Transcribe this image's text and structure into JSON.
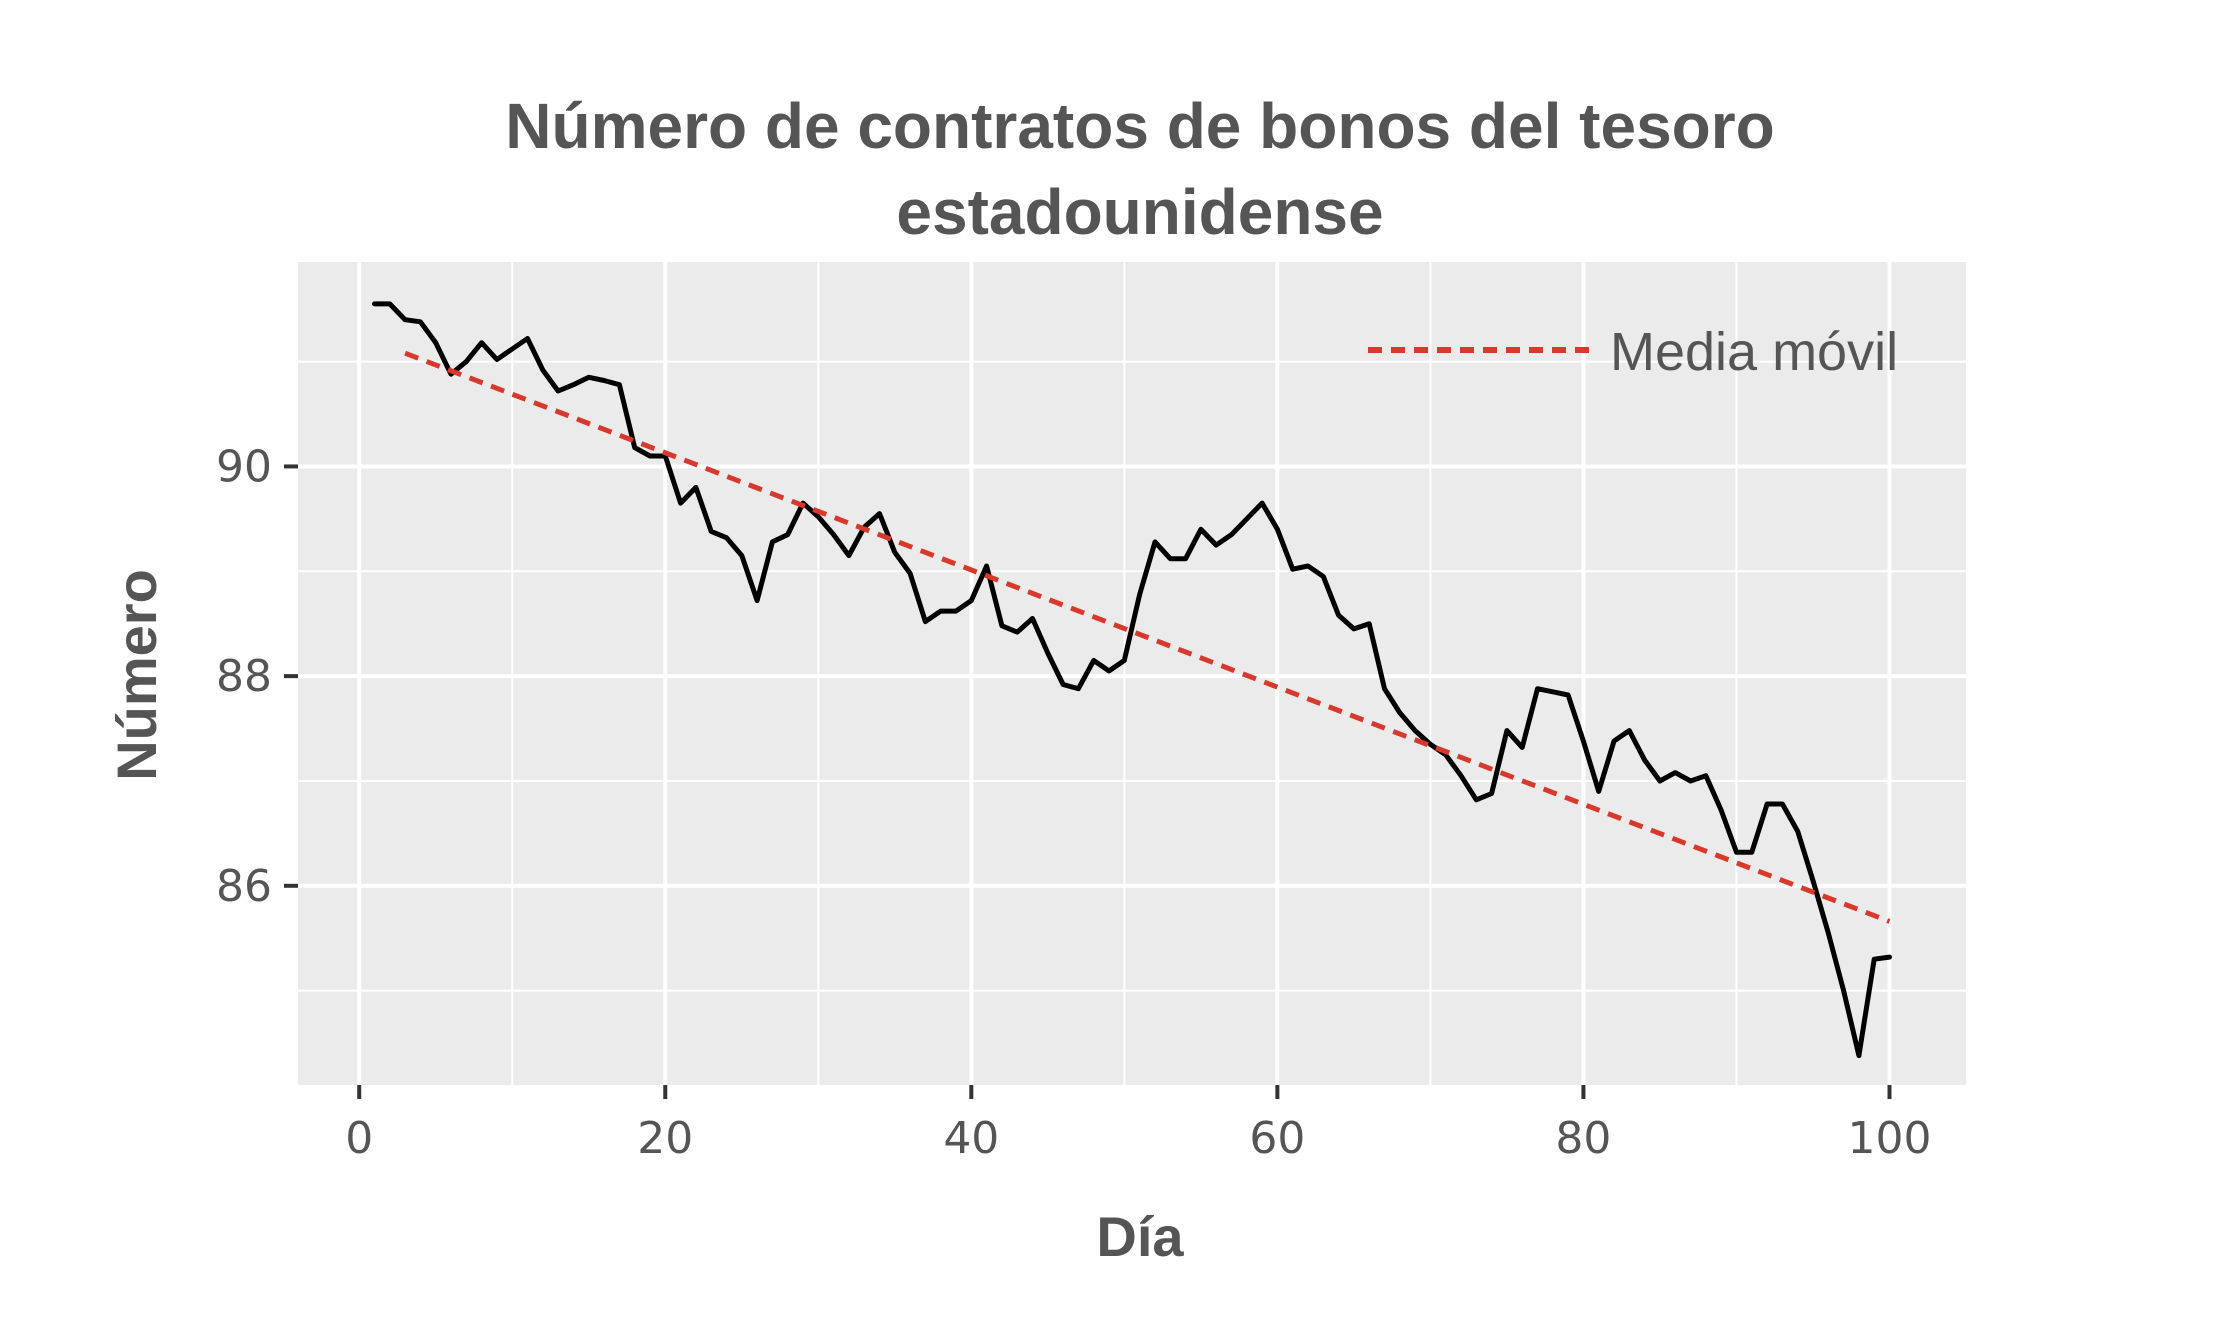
{
  "chart_data": {
    "type": "line",
    "title": [
      "Número de contratos de bonos del tesoro",
      "estadounidense"
    ],
    "xlabel": "Día",
    "ylabel": "Número",
    "xlim": [
      -4,
      105
    ],
    "ylim": [
      84.1,
      91.95
    ],
    "x_ticks": [
      0,
      20,
      40,
      60,
      80,
      100
    ],
    "x_tick_labels": [
      "0",
      "20",
      "40",
      "60",
      "80",
      "100"
    ],
    "y_ticks": [
      86,
      88,
      90
    ],
    "y_tick_labels": [
      "86",
      "88",
      "90"
    ],
    "grid": true,
    "legend_position": "top-right",
    "series": [
      {
        "style": "solid",
        "color": "#000000",
        "x": [
          1,
          2,
          3,
          4,
          5,
          6,
          7,
          8,
          9,
          10,
          11,
          12,
          13,
          14,
          15,
          16,
          17,
          18,
          19,
          20,
          21,
          22,
          23,
          24,
          25,
          26,
          27,
          28,
          29,
          30,
          31,
          32,
          33,
          34,
          35,
          36,
          37,
          38,
          39,
          40,
          41,
          42,
          43,
          44,
          45,
          46,
          47,
          48,
          49,
          50,
          51,
          52,
          53,
          54,
          55,
          56,
          57,
          58,
          59,
          60,
          61,
          62,
          63,
          64,
          65,
          66,
          67,
          68,
          69,
          70,
          71,
          72,
          73,
          74,
          75,
          76,
          77,
          78,
          79,
          80,
          81,
          82,
          83,
          84,
          85,
          86,
          87,
          88,
          89,
          90,
          91,
          92,
          93,
          94,
          95,
          96,
          97,
          98,
          99,
          100
        ],
        "y": [
          91.55,
          91.55,
          91.4,
          91.38,
          91.18,
          90.88,
          91.0,
          91.18,
          91.02,
          91.12,
          91.22,
          90.92,
          90.72,
          90.78,
          90.85,
          90.82,
          90.78,
          90.18,
          90.1,
          90.1,
          89.65,
          89.8,
          89.38,
          89.32,
          89.15,
          88.72,
          89.28,
          89.35,
          89.65,
          89.52,
          89.35,
          89.15,
          89.42,
          89.55,
          89.18,
          88.98,
          88.52,
          88.62,
          88.62,
          88.72,
          89.05,
          88.48,
          88.42,
          88.55,
          88.22,
          87.92,
          87.88,
          88.15,
          88.05,
          88.15,
          88.78,
          89.28,
          89.12,
          89.12,
          89.4,
          89.25,
          89.35,
          89.5,
          89.65,
          89.4,
          89.02,
          89.05,
          88.95,
          88.58,
          88.45,
          88.5,
          87.88,
          87.65,
          87.48,
          87.35,
          87.25,
          87.05,
          86.82,
          86.88,
          87.48,
          87.32,
          87.88,
          87.85,
          87.82,
          87.38,
          86.9,
          87.38,
          87.48,
          87.2,
          87.0,
          87.08,
          87.0,
          87.05,
          86.72,
          86.32,
          86.32,
          86.78,
          86.78,
          86.52,
          86.05,
          85.55,
          85.0,
          84.38,
          85.3,
          85.32
        ]
      },
      {
        "name": "Media móvil",
        "style": "dashed",
        "color": "#d7392d",
        "x": [
          3,
          100
        ],
        "y": [
          91.08,
          85.66
        ]
      }
    ]
  }
}
